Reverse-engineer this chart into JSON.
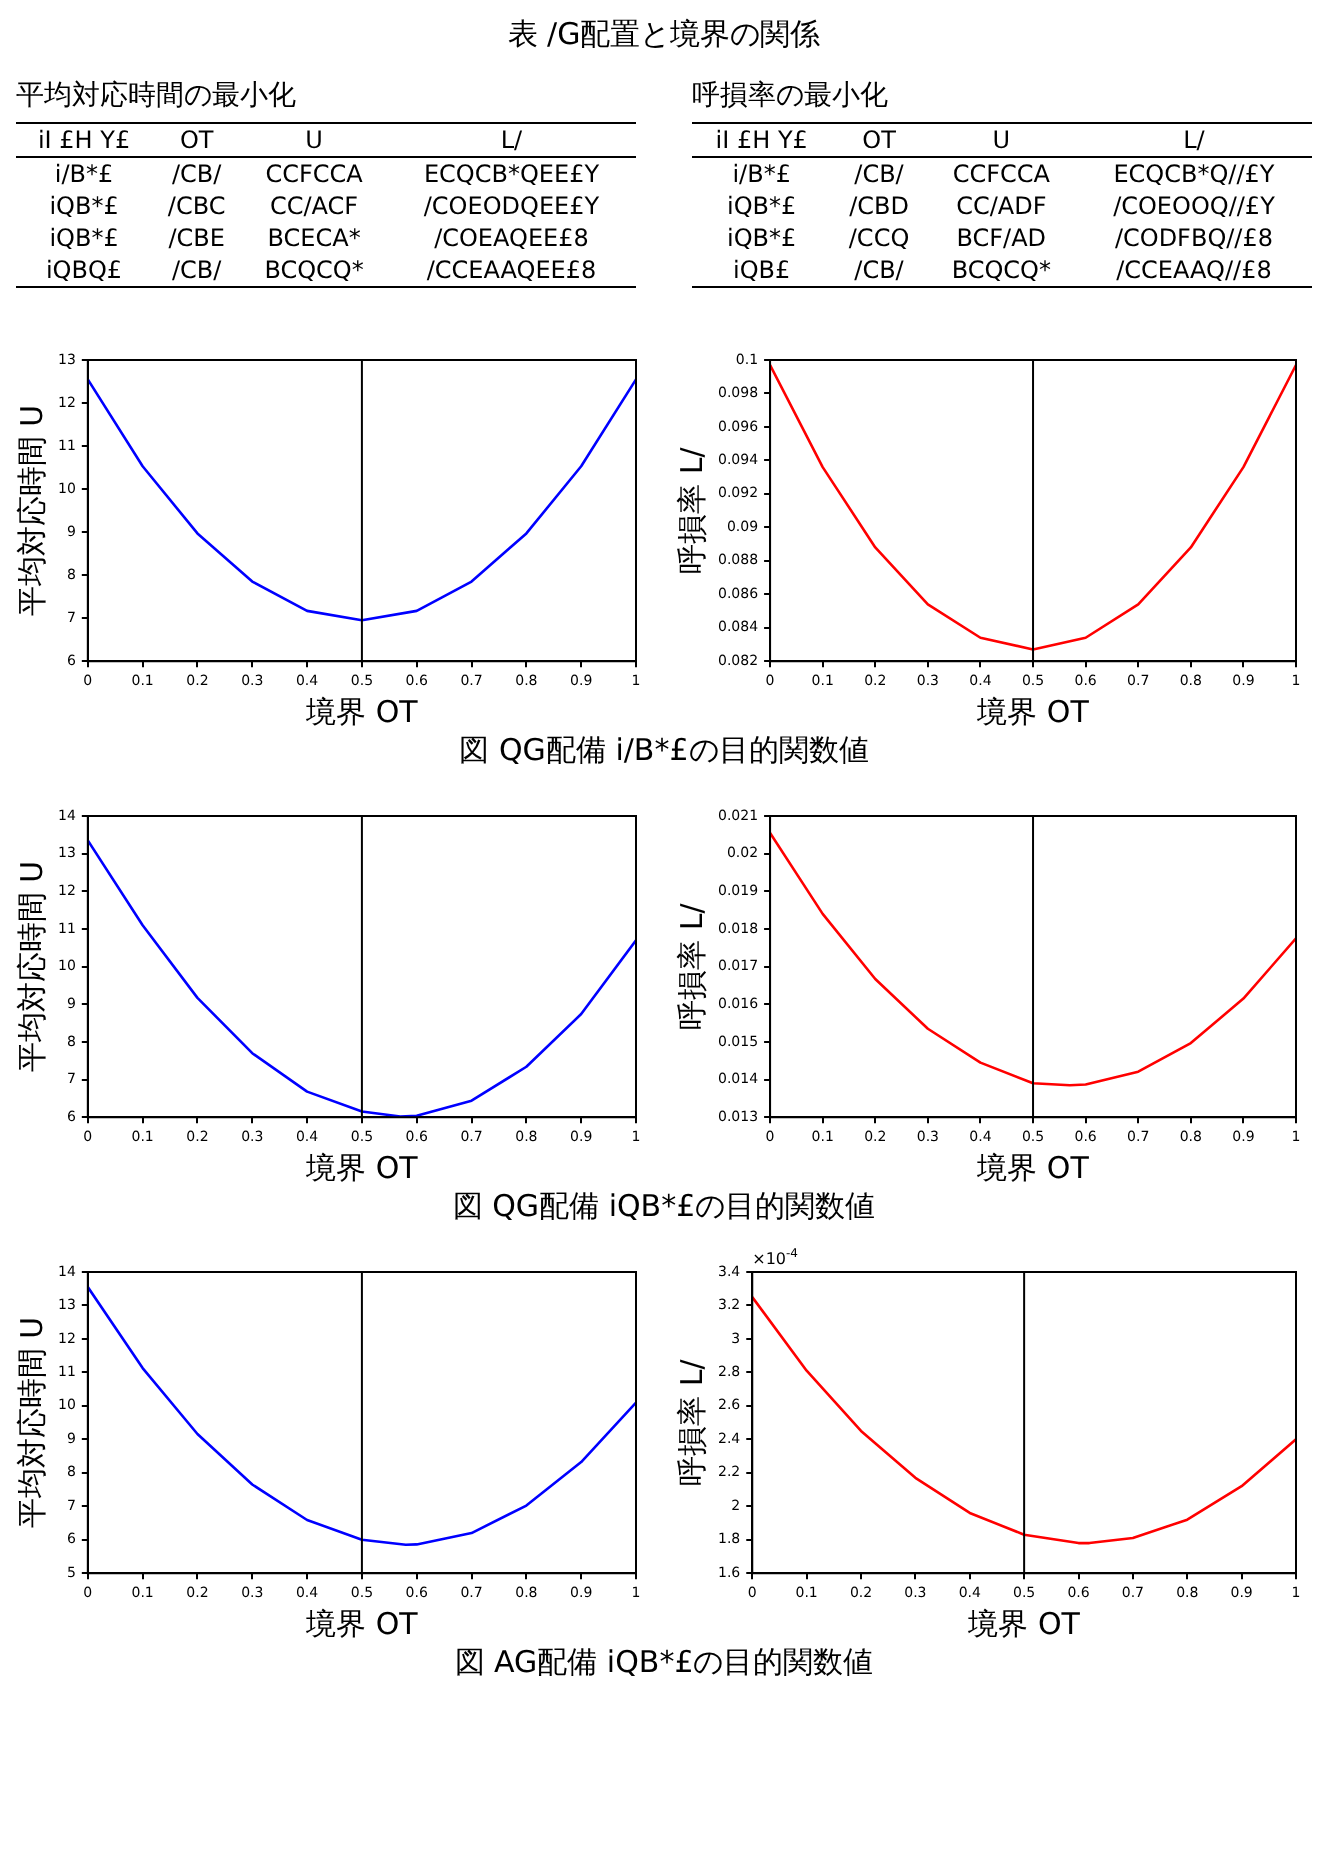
{
  "chart_data": [
    {
      "type": "other",
      "title": "表 /G配置と境界の関係",
      "subtitle": "平均対応時間の最小化",
      "annotations": [
        "iI £H Y£",
        "OT",
        "U",
        "L/",
        "i/B*£",
        "/CB/",
        "CCFCCA",
        "ECQCB*QEE£Y",
        "iQB*£",
        "/CBC",
        "CC/ACF",
        "/COEODQEE£Y",
        "iQB*£",
        "/CBE",
        "BCECA*",
        "/COEAQEE£8",
        "iQBQ£",
        "/CB/",
        "BCQCQ*",
        "/CCEAAQEE£8"
      ]
    },
    {
      "type": "other",
      "subtitle": "呼損率の最小化",
      "annotations": [
        "iI £H Y£",
        "OT",
        "U",
        "L/",
        "i/B*£",
        "/CB/",
        "CCFCCA",
        "ECQCB*Q//£Y",
        "iQB*£",
        "/CBD",
        "CC/ADF",
        "/COEOOQ//£Y",
        "iQB*£",
        "/CCQ",
        "BCF/AD",
        "/CODFBQ//£8",
        "iQB£",
        "/CB/",
        "BCQCQ*",
        "/CCEAAQ//£8"
      ]
    },
    {
      "type": "line",
      "xlabel": "境界 OT",
      "ylabel": "平均対応時間 U",
      "annotations": [
        "図 QG配備 i/B*£の目的関数値"
      ],
      "marker": "none",
      "xlim": [
        0,
        1
      ],
      "xticks": [
        0,
        0.1,
        0.2,
        0.3,
        0.4,
        0.5,
        0.6,
        0.7,
        0.8,
        0.9,
        1
      ],
      "ylim": [
        6,
        13
      ],
      "yticks": [
        6,
        7,
        8,
        9,
        10,
        11,
        12,
        13
      ],
      "ref_lines": [
        {
          "axis": "x",
          "value": 0.5,
          "color": "#000000"
        }
      ],
      "series": [
        {
          "color": "#0000ff",
          "x": [
            0,
            0.1,
            0.2,
            0.3,
            0.4,
            0.5,
            0.6,
            0.7,
            0.8,
            0.9,
            1
          ],
          "values": [
            12.55,
            10.53,
            8.97,
            7.85,
            7.17,
            6.95,
            7.17,
            7.85,
            8.97,
            10.53,
            12.55
          ]
        }
      ]
    },
    {
      "type": "line",
      "xlabel": "境界 OT",
      "ylabel": "呼損率 L/",
      "marker": "none",
      "xlim": [
        0,
        1
      ],
      "xticks": [
        0,
        0.1,
        0.2,
        0.3,
        0.4,
        0.5,
        0.6,
        0.7,
        0.8,
        0.9,
        1
      ],
      "ylim": [
        0.082,
        0.1
      ],
      "yticks": [
        0.082,
        0.084,
        0.086,
        0.088,
        0.09,
        0.092,
        0.094,
        0.096,
        0.098,
        0.1
      ],
      "ref_lines": [
        {
          "axis": "x",
          "value": 0.5,
          "color": "#000000"
        }
      ],
      "series": [
        {
          "color": "#ff0000",
          "x": [
            0,
            0.1,
            0.2,
            0.3,
            0.4,
            0.5,
            0.6,
            0.7,
            0.8,
            0.9,
            1
          ],
          "values": [
            0.0997,
            0.0936,
            0.0888,
            0.0854,
            0.0834,
            0.0827,
            0.0834,
            0.0854,
            0.0888,
            0.0936,
            0.0997
          ]
        }
      ]
    },
    {
      "type": "line",
      "xlabel": "境界 OT",
      "ylabel": "平均対応時間 U",
      "annotations": [
        "図 QG配備 iQB*£の目的関数値"
      ],
      "marker": "none",
      "xlim": [
        0,
        1
      ],
      "xticks": [
        0,
        0.1,
        0.2,
        0.3,
        0.4,
        0.5,
        0.6,
        0.7,
        0.8,
        0.9,
        1
      ],
      "ylim": [
        6,
        14
      ],
      "yticks": [
        6,
        7,
        8,
        9,
        10,
        11,
        12,
        13,
        14
      ],
      "ref_lines": [
        {
          "axis": "x",
          "value": 0.5,
          "color": "#000000"
        }
      ],
      "series": [
        {
          "color": "#0000ff",
          "x": [
            0,
            0.1,
            0.2,
            0.3,
            0.4,
            0.5,
            0.57,
            0.6,
            0.7,
            0.8,
            0.9,
            1
          ],
          "values": [
            13.35,
            11.1,
            9.17,
            7.7,
            6.68,
            6.15,
            6.02,
            6.04,
            6.44,
            7.34,
            8.74,
            10.7
          ]
        }
      ]
    },
    {
      "type": "line",
      "xlabel": "境界 OT",
      "ylabel": "呼損率 L/",
      "marker": "none",
      "xlim": [
        0,
        1
      ],
      "xticks": [
        0,
        0.1,
        0.2,
        0.3,
        0.4,
        0.5,
        0.6,
        0.7,
        0.8,
        0.9,
        1
      ],
      "ylim": [
        0.013,
        0.021
      ],
      "yticks": [
        0.013,
        0.014,
        0.015,
        0.016,
        0.017,
        0.018,
        0.019,
        0.02,
        0.021
      ],
      "ref_lines": [
        {
          "axis": "x",
          "value": 0.5,
          "color": "#000000"
        }
      ],
      "series": [
        {
          "color": "#ff0000",
          "x": [
            0,
            0.1,
            0.2,
            0.3,
            0.4,
            0.5,
            0.57,
            0.6,
            0.7,
            0.8,
            0.9,
            1
          ],
          "values": [
            0.02055,
            0.0184,
            0.01667,
            0.01535,
            0.01445,
            0.0139,
            0.01385,
            0.01387,
            0.01421,
            0.01497,
            0.01615,
            0.01775
          ]
        }
      ]
    },
    {
      "type": "line",
      "xlabel": "境界 OT",
      "ylabel": "平均対応時間 U",
      "annotations": [
        "図 AG配備 iQB*£の目的関数値"
      ],
      "marker": "none",
      "xlim": [
        0,
        1
      ],
      "xticks": [
        0,
        0.1,
        0.2,
        0.3,
        0.4,
        0.5,
        0.6,
        0.7,
        0.8,
        0.9,
        1
      ],
      "ylim": [
        5,
        14
      ],
      "yticks": [
        5,
        6,
        7,
        8,
        9,
        10,
        11,
        12,
        13,
        14
      ],
      "ref_lines": [
        {
          "axis": "x",
          "value": 0.5,
          "color": "#000000"
        }
      ],
      "series": [
        {
          "color": "#0000ff",
          "x": [
            0,
            0.1,
            0.2,
            0.3,
            0.4,
            0.5,
            0.58,
            0.6,
            0.7,
            0.8,
            0.9,
            1
          ],
          "values": [
            13.55,
            11.13,
            9.16,
            7.65,
            6.59,
            6.0,
            5.85,
            5.86,
            6.2,
            7.02,
            8.32,
            10.1
          ]
        }
      ]
    },
    {
      "type": "line",
      "xlabel": "境界 OT",
      "ylabel": "呼損率 L/",
      "annotations": [
        "×10$^{-4}$"
      ],
      "marker": "none",
      "xlim": [
        0,
        1
      ],
      "xticks": [
        0,
        0.1,
        0.2,
        0.3,
        0.4,
        0.5,
        0.6,
        0.7,
        0.8,
        0.9,
        1
      ],
      "ylim": [
        1.6,
        3.4
      ],
      "yticks": [
        1.6,
        1.8,
        2,
        2.2,
        2.4,
        2.6,
        2.8,
        3,
        3.2,
        3.4
      ],
      "ref_lines": [
        {
          "axis": "x",
          "value": 0.5,
          "color": "#000000"
        }
      ],
      "series": [
        {
          "color": "#ff0000",
          "x": [
            0,
            0.1,
            0.2,
            0.3,
            0.4,
            0.5,
            0.6,
            0.62,
            0.7,
            0.8,
            0.9,
            1
          ],
          "values": [
            3.25,
            2.81,
            2.45,
            2.17,
            1.96,
            1.83,
            1.78,
            1.78,
            1.81,
            1.92,
            2.12,
            2.4
          ]
        }
      ]
    }
  ]
}
